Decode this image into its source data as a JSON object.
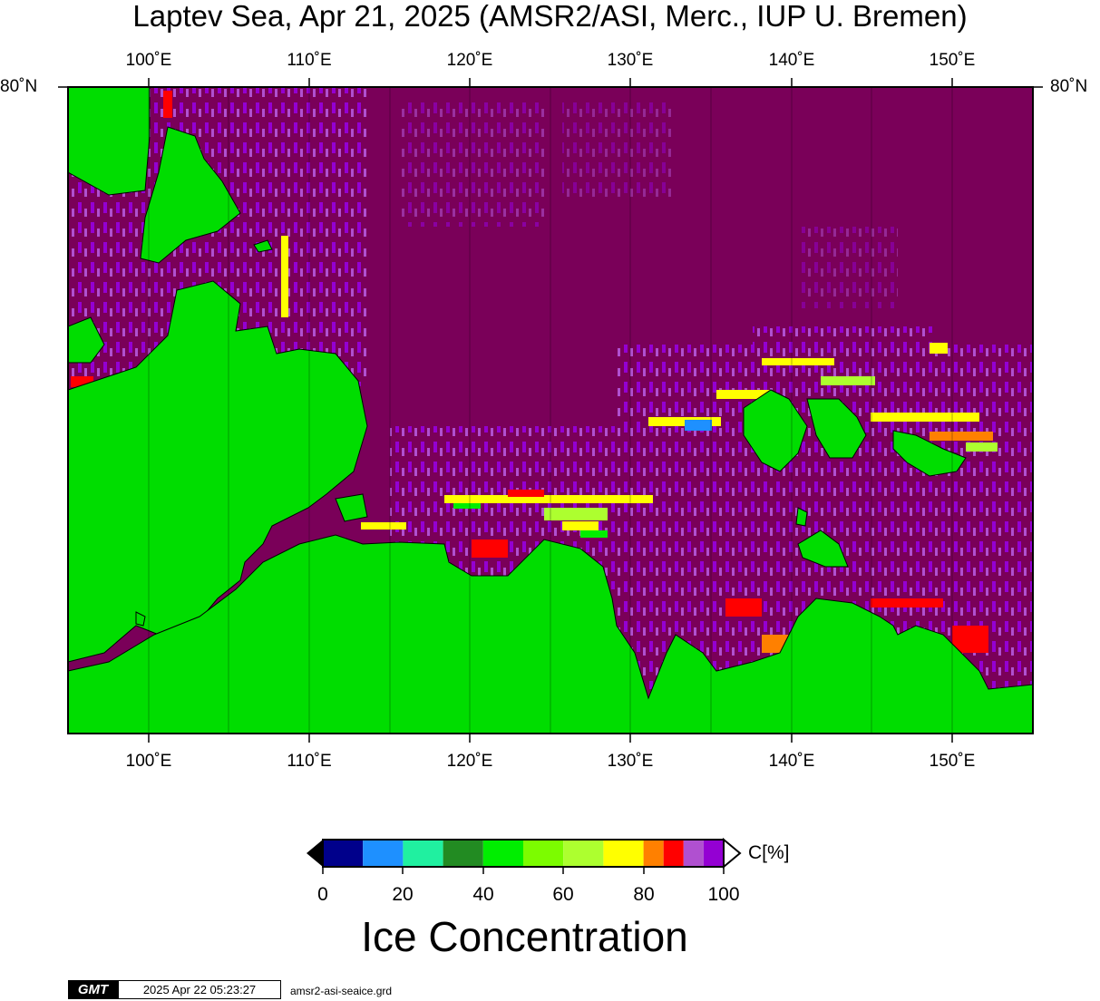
{
  "title": "Laptev Sea, Apr 21, 2025 (AMSR2/ASI, Merc., IUP U. Bremen)",
  "lon_ticks": [
    "100˚E",
    "110˚E",
    "120˚E",
    "130˚E",
    "140˚E",
    "150˚E"
  ],
  "lat_tick": "80˚N",
  "colorbar": {
    "unit_label": "C[%]",
    "tick_labels": [
      "0",
      "20",
      "40",
      "60",
      "80",
      "100"
    ],
    "title": "Ice Concentration",
    "colors": [
      "#00008b",
      "#1e90ff",
      "#20f0a0",
      "#228b22",
      "#00ee00",
      "#7cfc00",
      "#adff2f",
      "#ffff00",
      "#ff8000",
      "#ff0000",
      "#b050d0",
      "#9400d3"
    ],
    "land_color": "#00dd00",
    "ice_color": "#7a0059"
  },
  "footer": {
    "logo_text": "GMT",
    "timestamp": "2025 Apr 22 05:23:27",
    "filename": "amsr2-asi-seaice.grd"
  }
}
